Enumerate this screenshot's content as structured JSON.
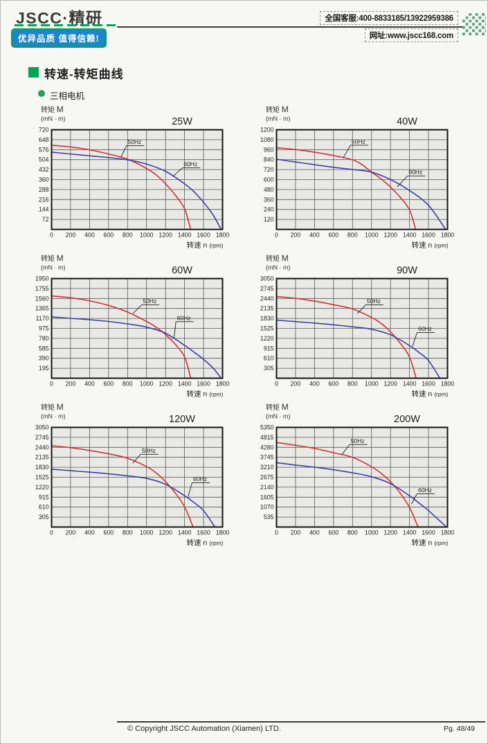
{
  "header": {
    "logo": "JSCC·精研",
    "tagline": "优异品质 值得信赖!",
    "service_phone": "全国客服:400-8833185/13922959386",
    "website": "网址:www.jscc168.com"
  },
  "section": {
    "title": "转速-转矩曲线",
    "subtitle": "三相电机"
  },
  "axes": {
    "ylabel": "转矩",
    "ylabel_symbol": "M",
    "ylabel_unit": "(mN · m)",
    "xlabel": "转速 n",
    "xlabel_unit": "(rpm)"
  },
  "colors": {
    "brand_green": "#00a551",
    "tagline_blue": "#1b86c8",
    "checker_green": "#5aa67a",
    "curve_50hz": "#d53030",
    "curve_60hz": "#3b3f9e",
    "plot_bg": "#e9e9e6",
    "grid": "#585858",
    "plot_border": "#141414"
  },
  "chart_data": [
    {
      "type": "line",
      "title": "25W",
      "xlim": [
        0,
        1800
      ],
      "ylim": [
        0,
        720
      ],
      "xticks": [
        0,
        200,
        400,
        600,
        800,
        1000,
        1200,
        1400,
        1600,
        1800
      ],
      "yticks": [
        72,
        144,
        216,
        288,
        360,
        432,
        504,
        576,
        648,
        720
      ],
      "series": [
        {
          "name": "50Hz",
          "color": "red",
          "points": [
            [
              0,
              608
            ],
            [
              200,
              596
            ],
            [
              400,
              575
            ],
            [
              600,
              545
            ],
            [
              800,
              508
            ],
            [
              1000,
              440
            ],
            [
              1100,
              395
            ],
            [
              1200,
              330
            ],
            [
              1300,
              250
            ],
            [
              1400,
              150
            ],
            [
              1465,
              0
            ]
          ]
        },
        {
          "name": "60Hz",
          "color": "blue",
          "points": [
            [
              0,
              558
            ],
            [
              200,
              545
            ],
            [
              400,
              532
            ],
            [
              600,
              519
            ],
            [
              800,
              503
            ],
            [
              1000,
              472
            ],
            [
              1200,
              420
            ],
            [
              1400,
              330
            ],
            [
              1500,
              272
            ],
            [
              1600,
              196
            ],
            [
              1700,
              105
            ],
            [
              1785,
              0
            ]
          ]
        }
      ],
      "annotations": [
        {
          "label": "50Hz",
          "text_pos": [
            800,
            618
          ],
          "target": [
            730,
            522
          ]
        },
        {
          "label": "60Hz",
          "text_pos": [
            1390,
            458
          ],
          "target": [
            1275,
            382
          ]
        }
      ]
    },
    {
      "type": "line",
      "title": "40W",
      "xlim": [
        0,
        1800
      ],
      "ylim": [
        0,
        1200
      ],
      "xticks": [
        0,
        200,
        400,
        600,
        800,
        1000,
        1200,
        1400,
        1600,
        1800
      ],
      "yticks": [
        120,
        240,
        360,
        480,
        600,
        720,
        840,
        960,
        1080,
        1200
      ],
      "series": [
        {
          "name": "50Hz",
          "color": "red",
          "points": [
            [
              0,
              985
            ],
            [
              200,
              962
            ],
            [
              400,
              930
            ],
            [
              600,
              890
            ],
            [
              800,
              838
            ],
            [
              900,
              780
            ],
            [
              1000,
              690
            ],
            [
              1100,
              610
            ],
            [
              1200,
              510
            ],
            [
              1300,
              390
            ],
            [
              1400,
              235
            ],
            [
              1465,
              0
            ]
          ]
        },
        {
          "name": "60Hz",
          "color": "blue",
          "points": [
            [
              0,
              845
            ],
            [
              200,
              812
            ],
            [
              400,
              780
            ],
            [
              600,
              748
            ],
            [
              800,
              722
            ],
            [
              1000,
              690
            ],
            [
              1200,
              600
            ],
            [
              1400,
              468
            ],
            [
              1600,
              290
            ],
            [
              1780,
              0
            ]
          ]
        }
      ],
      "annotations": [
        {
          "label": "50Hz",
          "text_pos": [
            790,
            1035
          ],
          "target": [
            700,
            858
          ]
        },
        {
          "label": "60Hz",
          "text_pos": [
            1390,
            665
          ],
          "target": [
            1270,
            512
          ]
        }
      ]
    },
    {
      "type": "line",
      "title": "60W",
      "xlim": [
        0,
        1800
      ],
      "ylim": [
        0,
        1950
      ],
      "xticks": [
        0,
        200,
        400,
        600,
        800,
        1000,
        1200,
        1400,
        1600,
        1800
      ],
      "yticks": [
        195,
        390,
        585,
        780,
        975,
        1170,
        1365,
        1560,
        1755,
        1950
      ],
      "series": [
        {
          "name": "50Hz",
          "color": "red",
          "points": [
            [
              0,
              1610
            ],
            [
              200,
              1575
            ],
            [
              400,
              1515
            ],
            [
              600,
              1425
            ],
            [
              800,
              1295
            ],
            [
              1000,
              1110
            ],
            [
              1100,
              1000
            ],
            [
              1200,
              855
            ],
            [
              1300,
              670
            ],
            [
              1400,
              420
            ],
            [
              1465,
              0
            ]
          ]
        },
        {
          "name": "60Hz",
          "color": "blue",
          "points": [
            [
              0,
              1200
            ],
            [
              200,
              1172
            ],
            [
              400,
              1145
            ],
            [
              600,
              1110
            ],
            [
              800,
              1063
            ],
            [
              1000,
              1000
            ],
            [
              1200,
              880
            ],
            [
              1400,
              645
            ],
            [
              1500,
              510
            ],
            [
              1600,
              370
            ],
            [
              1700,
              200
            ],
            [
              1785,
              0
            ]
          ]
        }
      ],
      "annotations": [
        {
          "label": "50Hz",
          "text_pos": [
            960,
            1470
          ],
          "target": [
            858,
            1268
          ]
        },
        {
          "label": "60Hz",
          "text_pos": [
            1320,
            1140
          ],
          "target": [
            1290,
            798
          ]
        }
      ]
    },
    {
      "type": "line",
      "title": "90W",
      "xlim": [
        0,
        1800
      ],
      "ylim": [
        0,
        3050
      ],
      "xticks": [
        0,
        200,
        400,
        600,
        800,
        1000,
        1200,
        1400,
        1600,
        1800
      ],
      "yticks": [
        305,
        610,
        915,
        1220,
        1525,
        1830,
        2135,
        2440,
        2745,
        3050
      ],
      "series": [
        {
          "name": "50Hz",
          "color": "red",
          "points": [
            [
              0,
              2500
            ],
            [
              200,
              2445
            ],
            [
              400,
              2360
            ],
            [
              600,
              2250
            ],
            [
              800,
              2120
            ],
            [
              1000,
              1860
            ],
            [
              1100,
              1680
            ],
            [
              1200,
              1420
            ],
            [
              1300,
              1080
            ],
            [
              1400,
              650
            ],
            [
              1470,
              0
            ]
          ]
        },
        {
          "name": "60Hz",
          "color": "blue",
          "points": [
            [
              0,
              1780
            ],
            [
              200,
              1732
            ],
            [
              400,
              1688
            ],
            [
              600,
              1635
            ],
            [
              800,
              1573
            ],
            [
              1000,
              1500
            ],
            [
              1200,
              1330
            ],
            [
              1400,
              1000
            ],
            [
              1500,
              790
            ],
            [
              1600,
              540
            ],
            [
              1720,
              0
            ]
          ]
        }
      ],
      "annotations": [
        {
          "label": "50Hz",
          "text_pos": [
            950,
            2300
          ],
          "target": [
            852,
            1980
          ]
        },
        {
          "label": "60Hz",
          "text_pos": [
            1490,
            1450
          ],
          "target": [
            1432,
            978
          ]
        }
      ]
    },
    {
      "type": "line",
      "title": "120W",
      "xlim": [
        0,
        1800
      ],
      "ylim": [
        0,
        3050
      ],
      "xticks": [
        0,
        200,
        400,
        600,
        800,
        1000,
        1200,
        1400,
        1600,
        1800
      ],
      "yticks": [
        305,
        610,
        915,
        1220,
        1525,
        1830,
        2135,
        2440,
        2745,
        3050
      ],
      "series": [
        {
          "name": "50Hz",
          "color": "red",
          "points": [
            [
              0,
              2490
            ],
            [
              200,
              2430
            ],
            [
              400,
              2345
            ],
            [
              600,
              2240
            ],
            [
              800,
              2105
            ],
            [
              1000,
              1850
            ],
            [
              1100,
              1660
            ],
            [
              1200,
              1390
            ],
            [
              1300,
              1050
            ],
            [
              1400,
              620
            ],
            [
              1490,
              0
            ]
          ]
        },
        {
          "name": "60Hz",
          "color": "blue",
          "points": [
            [
              0,
              1770
            ],
            [
              200,
              1725
            ],
            [
              400,
              1680
            ],
            [
              600,
              1628
            ],
            [
              800,
              1565
            ],
            [
              1000,
              1490
            ],
            [
              1200,
              1310
            ],
            [
              1400,
              960
            ],
            [
              1500,
              750
            ],
            [
              1600,
              500
            ],
            [
              1720,
              0
            ]
          ]
        }
      ],
      "annotations": [
        {
          "label": "50Hz",
          "text_pos": [
            950,
            2280
          ],
          "target": [
            855,
            1955
          ]
        },
        {
          "label": "60Hz",
          "text_pos": [
            1490,
            1410
          ],
          "target": [
            1438,
            935
          ]
        }
      ]
    },
    {
      "type": "line",
      "title": "200W",
      "xlim": [
        0,
        1800
      ],
      "ylim": [
        0,
        5350
      ],
      "xticks": [
        0,
        200,
        400,
        600,
        800,
        1000,
        1200,
        1400,
        1600,
        1800
      ],
      "yticks": [
        535,
        1070,
        1605,
        2140,
        2675,
        3210,
        3745,
        4280,
        4815,
        5350
      ],
      "series": [
        {
          "name": "50Hz",
          "color": "red",
          "points": [
            [
              0,
              4540
            ],
            [
              200,
              4390
            ],
            [
              400,
              4220
            ],
            [
              600,
              3990
            ],
            [
              800,
              3740
            ],
            [
              1000,
              3240
            ],
            [
              1100,
              2890
            ],
            [
              1200,
              2430
            ],
            [
              1300,
              1830
            ],
            [
              1400,
              1050
            ],
            [
              1490,
              0
            ]
          ]
        },
        {
          "name": "60Hz",
          "color": "blue",
          "points": [
            [
              0,
              3450
            ],
            [
              200,
              3330
            ],
            [
              400,
              3210
            ],
            [
              600,
              3075
            ],
            [
              800,
              2910
            ],
            [
              1000,
              2700
            ],
            [
              1200,
              2330
            ],
            [
              1400,
              1680
            ],
            [
              1500,
              1290
            ],
            [
              1600,
              880
            ],
            [
              1790,
              0
            ]
          ]
        }
      ],
      "annotations": [
        {
          "label": "50Hz",
          "text_pos": [
            780,
            4520
          ],
          "target": [
            688,
            3890
          ]
        },
        {
          "label": "60Hz",
          "text_pos": [
            1490,
            1880
          ],
          "target": [
            1422,
            1245
          ]
        }
      ]
    }
  ],
  "footer": {
    "copyright": "© Copyright JSCC Automation (Xiamen) LTD.",
    "page_num": "Pg. 48/49"
  }
}
